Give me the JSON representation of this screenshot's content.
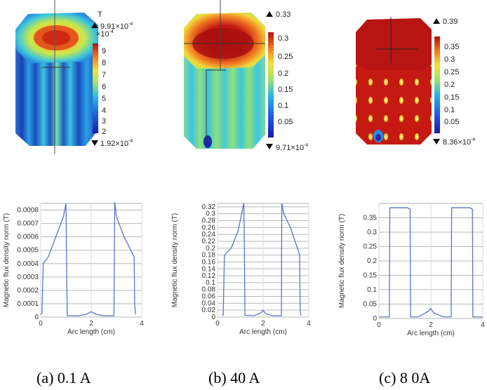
{
  "simulations": [
    {
      "unit": "T",
      "max_label": "9.91×10",
      "max_exp": "-4",
      "scale_label": "×10",
      "scale_exp": "-4",
      "min_label": "1.92×10",
      "min_exp": "-4",
      "colorbar_ticks": [
        "9",
        "8",
        "7",
        "6",
        "5",
        "4",
        "3",
        "2"
      ]
    },
    {
      "max_label": "0.33",
      "min_label": "9.71×10",
      "min_exp": "-4",
      "colorbar_ticks": [
        "0.3",
        "0.25",
        "0.2",
        "0.15",
        "0.1",
        "0.05"
      ]
    },
    {
      "max_label": "0.39",
      "min_label": "8.36×10",
      "min_exp": "-4",
      "colorbar_ticks": [
        "0.35",
        "0.3",
        "0.25",
        "0.2",
        "0.15",
        "0.1",
        "0.05"
      ]
    }
  ],
  "chart_data": [
    {
      "type": "line",
      "xlabel": "Arc length (cm)",
      "ylabel": "Magnetic flux density norm (T)",
      "xlim": [
        0,
        4
      ],
      "ylim": [
        0,
        0.00085
      ],
      "x_ticks": [
        "0",
        "2",
        "4"
      ],
      "y_ticks": [
        "0",
        "0.0001",
        "0.0002",
        "0.0003",
        "0.0004",
        "0.0005",
        "0.0006",
        "0.0007",
        "0.0008"
      ],
      "series": [
        {
          "x": [
            0,
            0.05,
            0.1,
            0.3,
            0.6,
            0.9,
            1.0,
            1.02,
            1.05,
            1.5,
            1.8,
            2.0,
            2.2,
            2.5,
            2.9,
            2.93,
            3.0,
            3.3,
            3.7,
            3.72,
            3.75
          ],
          "y": [
            2e-05,
            3e-05,
            0.0004,
            0.00045,
            0.0006,
            0.00075,
            0.00085,
            0.0005,
            1e-05,
            1e-05,
            2e-05,
            4e-05,
            2e-05,
            1e-05,
            1e-05,
            0.00086,
            0.00075,
            0.0006,
            0.00045,
            0.0001,
            2e-05
          ]
        }
      ]
    },
    {
      "type": "line",
      "xlabel": "Arc length (cm)",
      "ylabel": "Magnetic flux density norm (T)",
      "xlim": [
        0,
        4
      ],
      "ylim": [
        0,
        0.33
      ],
      "x_ticks": [
        "0",
        "2",
        "4"
      ],
      "y_ticks": [
        "0",
        "0.02",
        "0.04",
        "0.06",
        "0.08",
        "0.1",
        "0.12",
        "0.14",
        "0.16",
        "0.18",
        "0.2",
        "0.22",
        "0.24",
        "0.26",
        "0.28",
        "0.3",
        "0.32"
      ],
      "series": [
        {
          "x": [
            0.2,
            0.25,
            0.3,
            0.6,
            0.9,
            1.15,
            1.18,
            1.2,
            1.6,
            1.9,
            2.0,
            2.1,
            2.4,
            2.8,
            2.82,
            2.9,
            3.2,
            3.5,
            3.6,
            3.62,
            3.65
          ],
          "y": [
            0.005,
            0.006,
            0.18,
            0.2,
            0.25,
            0.33,
            0.2,
            0.005,
            0.004,
            0.012,
            0.02,
            0.01,
            0.004,
            0.004,
            0.33,
            0.3,
            0.26,
            0.2,
            0.18,
            0.02,
            0.005
          ]
        }
      ]
    },
    {
      "type": "line",
      "xlabel": "Arc length (cm)",
      "ylabel": "Magnetic flux density norm (T)",
      "xlim": [
        0,
        4
      ],
      "ylim": [
        0,
        0.4
      ],
      "x_ticks": [
        "0",
        "2",
        "4"
      ],
      "y_ticks": [
        "0",
        "0.05",
        "0.1",
        "0.15",
        "0.2",
        "0.25",
        "0.3",
        "0.35"
      ],
      "series": [
        {
          "x": [
            0,
            0.4,
            0.42,
            0.5,
            1.1,
            1.2,
            1.22,
            1.5,
            1.9,
            2.0,
            2.1,
            2.5,
            2.78,
            2.8,
            2.9,
            3.5,
            3.6,
            3.62,
            4.0
          ],
          "y": [
            0.005,
            0.005,
            0.385,
            0.385,
            0.385,
            0.38,
            0.005,
            0.005,
            0.025,
            0.035,
            0.02,
            0.005,
            0.005,
            0.385,
            0.385,
            0.385,
            0.38,
            0.005,
            0.005
          ]
        }
      ]
    }
  ],
  "captions": [
    "(a) 0.1 A",
    "(b) 40 A",
    "(c) 8 0A"
  ],
  "colors": {
    "line": "#5b74c8",
    "grid_major": "#b7b7b7",
    "grid_minor": "#d9d9d9"
  }
}
